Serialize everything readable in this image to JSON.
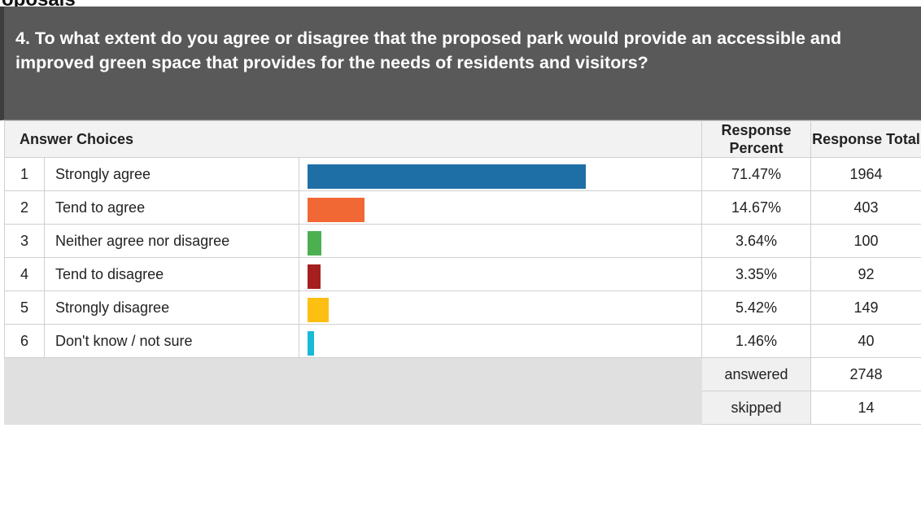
{
  "page": {
    "clipped_heading": "oposals"
  },
  "question": "4. To what extent do you agree or disagree that the proposed park would provide an accessible and improved green space that provides for the needs of residents and visitors?",
  "table_header": {
    "answer_choices": "Answer Choices",
    "response_percent": "Response Percent",
    "response_total": "Response Total"
  },
  "chart_data": {
    "type": "bar",
    "orientation": "horizontal",
    "categories": [
      "Strongly agree",
      "Tend to agree",
      "Neither agree nor disagree",
      "Tend to disagree",
      "Strongly disagree",
      "Don't know / not sure"
    ],
    "row_numbers": [
      "1",
      "2",
      "3",
      "4",
      "5",
      "6"
    ],
    "values": [
      71.47,
      14.67,
      3.64,
      3.35,
      5.42,
      1.46
    ],
    "percent_labels": [
      "71.47%",
      "14.67%",
      "3.64%",
      "3.35%",
      "5.42%",
      "1.46%"
    ],
    "totals": [
      "1964",
      "403",
      "100",
      "92",
      "149",
      "40"
    ],
    "colors": [
      "#1f6fa7",
      "#f26835",
      "#4caf50",
      "#a51f1f",
      "#fdbf12",
      "#1ab9d6"
    ],
    "xlim": [
      0,
      100
    ]
  },
  "summary": {
    "answered_label": "answered",
    "answered_value": "2748",
    "skipped_label": "skipped",
    "skipped_value": "14"
  }
}
